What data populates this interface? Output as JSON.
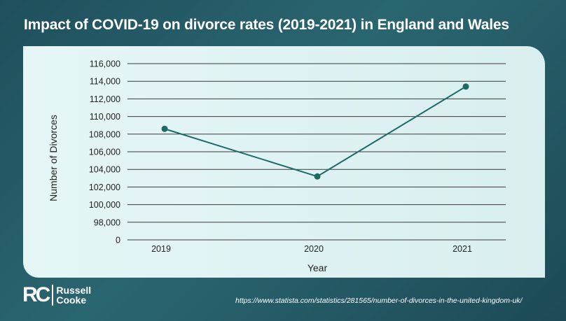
{
  "chart_data": {
    "type": "line",
    "title": "Impact of COVID-19 on divorce rates (2019-2021) in England and Wales",
    "xlabel": "Year",
    "ylabel": "Number of Divorces",
    "categories": [
      "2019",
      "2020",
      "2021"
    ],
    "values": [
      108600,
      103200,
      113400
    ],
    "yticks": [
      0,
      98000,
      100000,
      102000,
      104000,
      106000,
      108000,
      110000,
      112000,
      114000,
      116000
    ],
    "ytick_labels": [
      "0",
      "98,000",
      "100,000",
      "102,000",
      "104,000",
      "106,000",
      "108,000",
      "110,000",
      "112,000",
      "114,000",
      "116,000"
    ],
    "ylim": [
      96000,
      116000
    ],
    "axis_break": "0 placed directly below 98,000",
    "grid": true,
    "colors": {
      "line": "#1e6b66",
      "grid": "#3a3a3a"
    }
  },
  "footer": {
    "logo_initials": "RC",
    "logo_line1": "Russell",
    "logo_line2": "Cooke",
    "source": "https://www.statista.com/statistics/281565/number-of-divorces-in-the-united-kingdom-uk/"
  }
}
